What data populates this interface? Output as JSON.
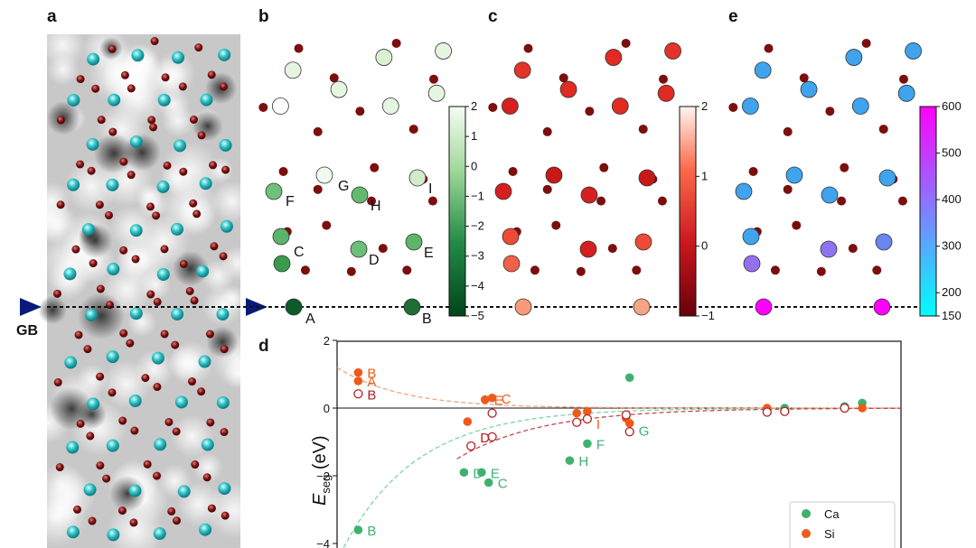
{
  "panel_labels": {
    "a": "a",
    "b": "b",
    "c": "c",
    "d": "d",
    "e": "e"
  },
  "gb_label": "GB",
  "colors": {
    "ca_cation": "#2bbfc2",
    "oxygen": "#7a0f0f",
    "ca_series": "#3cb26e",
    "si_series": "#ef5a1a",
    "open_series": "#b02020"
  },
  "colorbars": {
    "b": {
      "ticks": [
        "2",
        "1",
        "0",
        "−1",
        "−2",
        "−3",
        "−4",
        "−5"
      ],
      "min": -5,
      "max": 2
    },
    "c": {
      "ticks": [
        "2",
        "1",
        "0",
        "−1"
      ],
      "min": -1,
      "max": 2
    },
    "e": {
      "ticks": [
        "600",
        "500",
        "400",
        "300",
        "200",
        "150"
      ],
      "min": 150,
      "max": 600
    }
  },
  "atom_labels": [
    "F",
    "G",
    "H",
    "I",
    "C",
    "D",
    "E",
    "A",
    "B"
  ],
  "chart_data": {
    "type": "scatter",
    "title": "",
    "xlabel": "",
    "ylabel": "E_seg (eV)",
    "ylabel_main": "E",
    "ylabel_sub": "seg",
    "ylabel_unit": " (eV)",
    "ylim": [
      -4,
      2
    ],
    "yticks": [
      "2",
      "0",
      "−2",
      "−4"
    ],
    "xlim": [
      0,
      8
    ],
    "series": [
      {
        "name": "Ca",
        "marker": "filled",
        "points": [
          [
            0.3,
            -3.6
          ],
          [
            1.8,
            -1.9
          ],
          [
            2.05,
            -1.9
          ],
          [
            2.15,
            -2.2
          ],
          [
            3.3,
            -1.55
          ],
          [
            3.55,
            -1.05
          ],
          [
            4.15,
            0.9
          ],
          [
            6.1,
            -0.05
          ],
          [
            6.35,
            0.0
          ],
          [
            7.2,
            0.05
          ],
          [
            7.45,
            0.15
          ]
        ],
        "labels": [
          {
            "text": "B",
            "x": 0.3,
            "y": -3.6
          },
          {
            "text": "D",
            "x": 1.8,
            "y": -1.9
          },
          {
            "text": "E",
            "x": 2.05,
            "y": -1.9
          },
          {
            "text": "C",
            "x": 2.15,
            "y": -2.2
          },
          {
            "text": "H",
            "x": 3.3,
            "y": -1.55
          },
          {
            "text": "F",
            "x": 3.55,
            "y": -1.05
          },
          {
            "text": "G",
            "x": 4.15,
            "y": -0.65
          }
        ]
      },
      {
        "name": "Si",
        "marker": "filled",
        "points": [
          [
            0.3,
            1.05
          ],
          [
            0.3,
            0.8
          ],
          [
            1.85,
            -0.4
          ],
          [
            2.1,
            0.25
          ],
          [
            2.2,
            0.3
          ],
          [
            3.4,
            -0.15
          ],
          [
            3.55,
            -0.1
          ],
          [
            4.1,
            -0.3
          ],
          [
            4.15,
            -0.45
          ],
          [
            6.1,
            0.0
          ],
          [
            7.45,
            0.0
          ]
        ],
        "labels": [
          {
            "text": "B",
            "x": 0.3,
            "y": 1.05
          },
          {
            "text": "A",
            "x": 0.3,
            "y": 0.8
          },
          {
            "text": "E",
            "x": 2.1,
            "y": 0.25
          },
          {
            "text": "C",
            "x": 2.2,
            "y": 0.3
          },
          {
            "text": "I",
            "x": 3.55,
            "y": -0.45
          }
        ]
      },
      {
        "name": "open",
        "marker": "open",
        "points": [
          [
            0.3,
            0.42
          ],
          [
            1.9,
            -1.12
          ],
          [
            2.2,
            -0.85
          ],
          [
            2.2,
            -0.15
          ],
          [
            3.4,
            -0.42
          ],
          [
            3.55,
            -0.32
          ],
          [
            4.1,
            -0.2
          ],
          [
            4.15,
            -0.7
          ],
          [
            6.1,
            -0.12
          ],
          [
            6.35,
            -0.1
          ],
          [
            7.2,
            0.0
          ]
        ],
        "labels": [
          {
            "text": "B",
            "x": 0.3,
            "y": 0.42
          },
          {
            "text": "D",
            "x": 1.9,
            "y": -0.85
          }
        ]
      }
    ],
    "fits": [
      {
        "name": "Ca fit",
        "y0": -4.5,
        "decay": 1.05,
        "from": 0.0
      },
      {
        "name": "Si fit",
        "y0": 1.2,
        "decay": 0.9,
        "from": 0.0
      },
      {
        "name": "open fit",
        "y0": -1.5,
        "decay": 1.2,
        "from": 1.7
      }
    ],
    "legend": {
      "position": "bottom-right",
      "entries": [
        "Ca",
        "Si"
      ]
    }
  }
}
